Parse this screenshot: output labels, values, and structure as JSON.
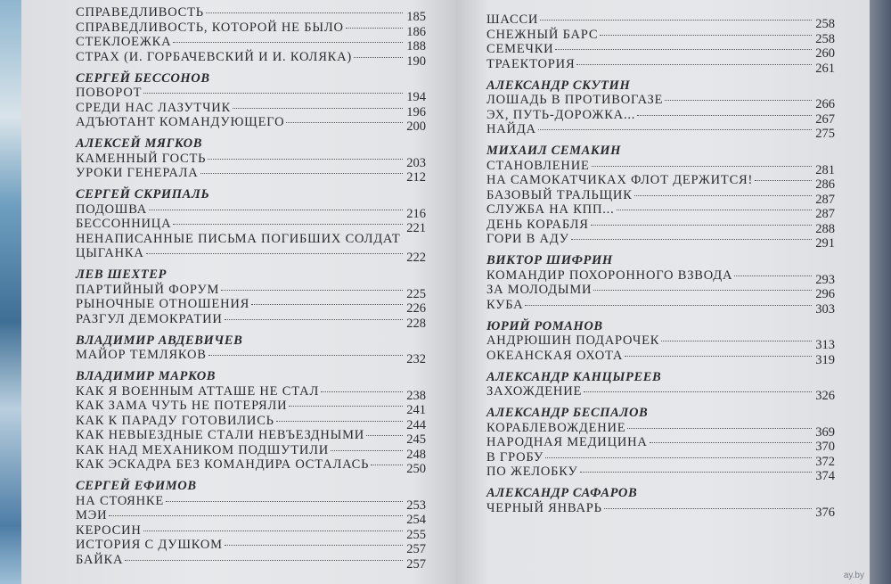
{
  "left_page": [
    {
      "author": "",
      "entries": [
        {
          "title": "СПРАВЕДЛИВОСТЬ",
          "page": "185"
        },
        {
          "title": "СПРАВЕДЛИВОСТЬ, КОТОРОЙ НЕ БЫЛО",
          "page": "186"
        },
        {
          "title": "СТЕКЛОЕЖКА",
          "page": "188"
        },
        {
          "title": "СТРАХ (И. ГОРБАЧЕВСКИЙ И И. КОЛЯКА)",
          "page": "190"
        }
      ]
    },
    {
      "author": "СЕРГЕЙ БЕССОНОВ",
      "entries": [
        {
          "title": "ПОВОРОТ",
          "page": "194"
        },
        {
          "title": "СРЕДИ НАС ЛАЗУТЧИК",
          "page": "196"
        },
        {
          "title": "АДЪЮТАНТ КОМАНДУЮЩЕГО",
          "page": "200"
        }
      ]
    },
    {
      "author": "АЛЕКСЕЙ МЯГКОВ",
      "entries": [
        {
          "title": "КАМЕННЫЙ ГОСТЬ",
          "page": "203"
        },
        {
          "title": "УРОКИ ГЕНЕРАЛА",
          "page": "212"
        }
      ]
    },
    {
      "author": "СЕРГЕЙ СКРИПАЛЬ",
      "entries": [
        {
          "title": "ПОДОШВА",
          "page": "216"
        },
        {
          "title": "БЕССОННИЦА",
          "page": "221"
        },
        {
          "title": "НЕНАПИСАННЫЕ ПИСЬМА ПОГИБШИХ СОЛДАТ",
          "page": ""
        },
        {
          "title": "ЦЫГАНКА",
          "page": "222"
        }
      ]
    },
    {
      "author": "ЛЕВ ШЕХТЕР",
      "entries": [
        {
          "title": "ПАРТИЙНЫЙ ФОРУМ",
          "page": "225"
        },
        {
          "title": "РЫНОЧНЫЕ ОТНОШЕНИЯ",
          "page": "226"
        },
        {
          "title": "РАЗГУЛ ДЕМОКРАТИИ",
          "page": "228"
        }
      ]
    },
    {
      "author": "ВЛАДИМИР АВДЕВИЧЕВ",
      "entries": [
        {
          "title": "МАЙОР ТЕМЛЯКОВ",
          "page": "232"
        }
      ]
    },
    {
      "author": "ВЛАДИМИР МАРКОВ",
      "entries": [
        {
          "title": "КАК Я ВОЕННЫМ АТТАШЕ НЕ СТАЛ",
          "page": "238"
        },
        {
          "title": "КАК ЗАМА ЧУТЬ НЕ ПОТЕРЯЛИ",
          "page": "241"
        },
        {
          "title": "КАК К ПАРАДУ ГОТОВИЛИСЬ",
          "page": "244"
        },
        {
          "title": "КАК НЕВЫЕЗДНЫЕ СТАЛИ НЕВЪЕЗДНЫМИ",
          "page": "245"
        },
        {
          "title": "КАК НАД МЕХАНИКОМ ПОДШУТИЛИ",
          "page": "248"
        },
        {
          "title": "КАК ЭСКАДРА БЕЗ КОМАНДИРА ОСТАЛАСЬ",
          "page": "250"
        }
      ]
    },
    {
      "author": "СЕРГЕЙ ЕФИМОВ",
      "entries": [
        {
          "title": "НА СТОЯНКЕ",
          "page": "253"
        },
        {
          "title": "МЭИ",
          "page": "254"
        },
        {
          "title": "КЕРОСИН",
          "page": "255"
        },
        {
          "title": "ИСТОРИЯ С ДУШКОМ",
          "page": "257"
        },
        {
          "title": "БАЙКА",
          "page": "257"
        }
      ]
    }
  ],
  "right_page": [
    {
      "author": "",
      "entries": [
        {
          "title": "ШАССИ",
          "page": "258"
        },
        {
          "title": "СНЕЖНЫЙ БАРС",
          "page": "258"
        },
        {
          "title": "СЕМЕЧКИ",
          "page": "260"
        },
        {
          "title": "ТРАЕКТОРИЯ",
          "page": "261"
        }
      ]
    },
    {
      "author": "АЛЕКСАНДР СКУТИН",
      "entries": [
        {
          "title": "ЛОШАДЬ В ПРОТИВОГАЗЕ",
          "page": "266"
        },
        {
          "title": "ЭХ, ПУТЬ-ДОРОЖКА...",
          "page": "267"
        },
        {
          "title": "НАЙДА",
          "page": "275"
        }
      ]
    },
    {
      "author": "МИХАИЛ СЕМАКИН",
      "entries": [
        {
          "title": "СТАНОВЛЕНИЕ",
          "page": "281"
        },
        {
          "title": "НА САМОКАТЧИКАХ ФЛОТ ДЕРЖИТСЯ!",
          "page": "286"
        },
        {
          "title": "БАЗОВЫЙ ТРАЛЬЩИК",
          "page": "287"
        },
        {
          "title": "СЛУЖБА НА КПП...",
          "page": "287"
        },
        {
          "title": "ДЕНЬ КОРАБЛЯ",
          "page": "288"
        },
        {
          "title": "ГОРИ В АДУ",
          "page": "291"
        }
      ]
    },
    {
      "author": "ВИКТОР ШИФРИН",
      "entries": [
        {
          "title": "КОМАНДИР ПОХОРОННОГО ВЗВОДА",
          "page": "293"
        },
        {
          "title": "ЗА МОЛОДЫМИ",
          "page": "296"
        },
        {
          "title": "КУБА",
          "page": "303"
        }
      ]
    },
    {
      "author": "ЮРИЙ РОМАНОВ",
      "entries": [
        {
          "title": "АНДРЮШИН ПОДАРОЧЕК",
          "page": "313"
        },
        {
          "title": "ОКЕАНСКАЯ ОХОТА",
          "page": "319"
        }
      ]
    },
    {
      "author": "АЛЕКСАНДР КАНЦЫРЕЕВ",
      "entries": [
        {
          "title": "ЗАХОЖДЕНИЕ",
          "page": "326"
        }
      ]
    },
    {
      "author": "АЛЕКСАНДР БЕСПАЛОВ",
      "entries": [
        {
          "title": "КОРАБЛЕВОЖДЕНИЕ",
          "page": "369"
        },
        {
          "title": "НАРОДНАЯ МЕДИЦИНА",
          "page": "370"
        },
        {
          "title": "В ГРОБУ",
          "page": "372"
        },
        {
          "title": "ПО ЖЕЛОБКУ",
          "page": "374"
        }
      ]
    },
    {
      "author": "АЛЕКСАНДР САФАРОВ",
      "entries": [
        {
          "title": "ЧЕРНЫЙ ЯНВАРЬ",
          "page": "376"
        }
      ]
    }
  ],
  "watermark": "ay.by"
}
